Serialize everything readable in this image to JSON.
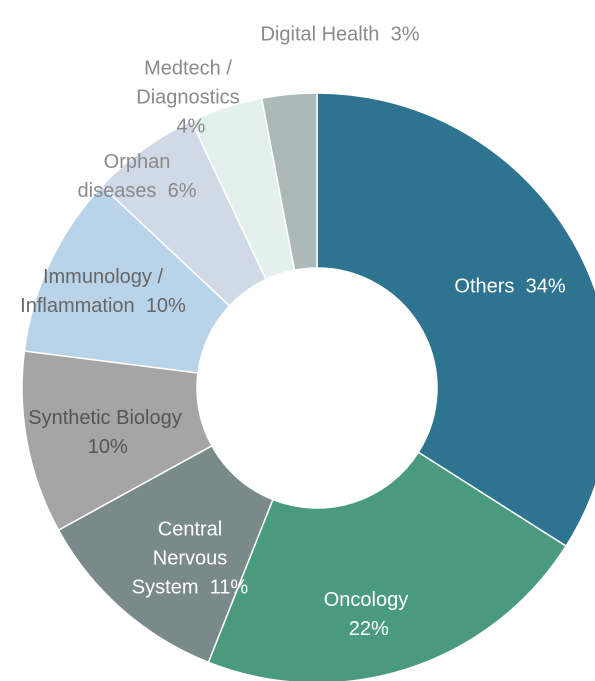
{
  "chart_data": {
    "type": "donut",
    "categories": [
      "Others",
      "Oncology",
      "Central Nervous System",
      "Synthetic Biology",
      "Immunology / Inflammation",
      "Orphan diseases",
      "Medtech / Diagnostics",
      "Digital Health"
    ],
    "values": [
      34,
      22,
      11,
      10,
      10,
      6,
      4,
      3
    ],
    "value_labels": [
      "34%",
      "22%",
      "11%",
      "10%",
      "10%",
      "6%",
      "4%",
      "3%"
    ],
    "colors": [
      "#2e7490",
      "#4a9a80",
      "#7a8a8a",
      "#a5a5a5",
      "#b9d3e9",
      "#cfdae6",
      "#e3f1ed",
      "#abb9b9"
    ]
  }
}
